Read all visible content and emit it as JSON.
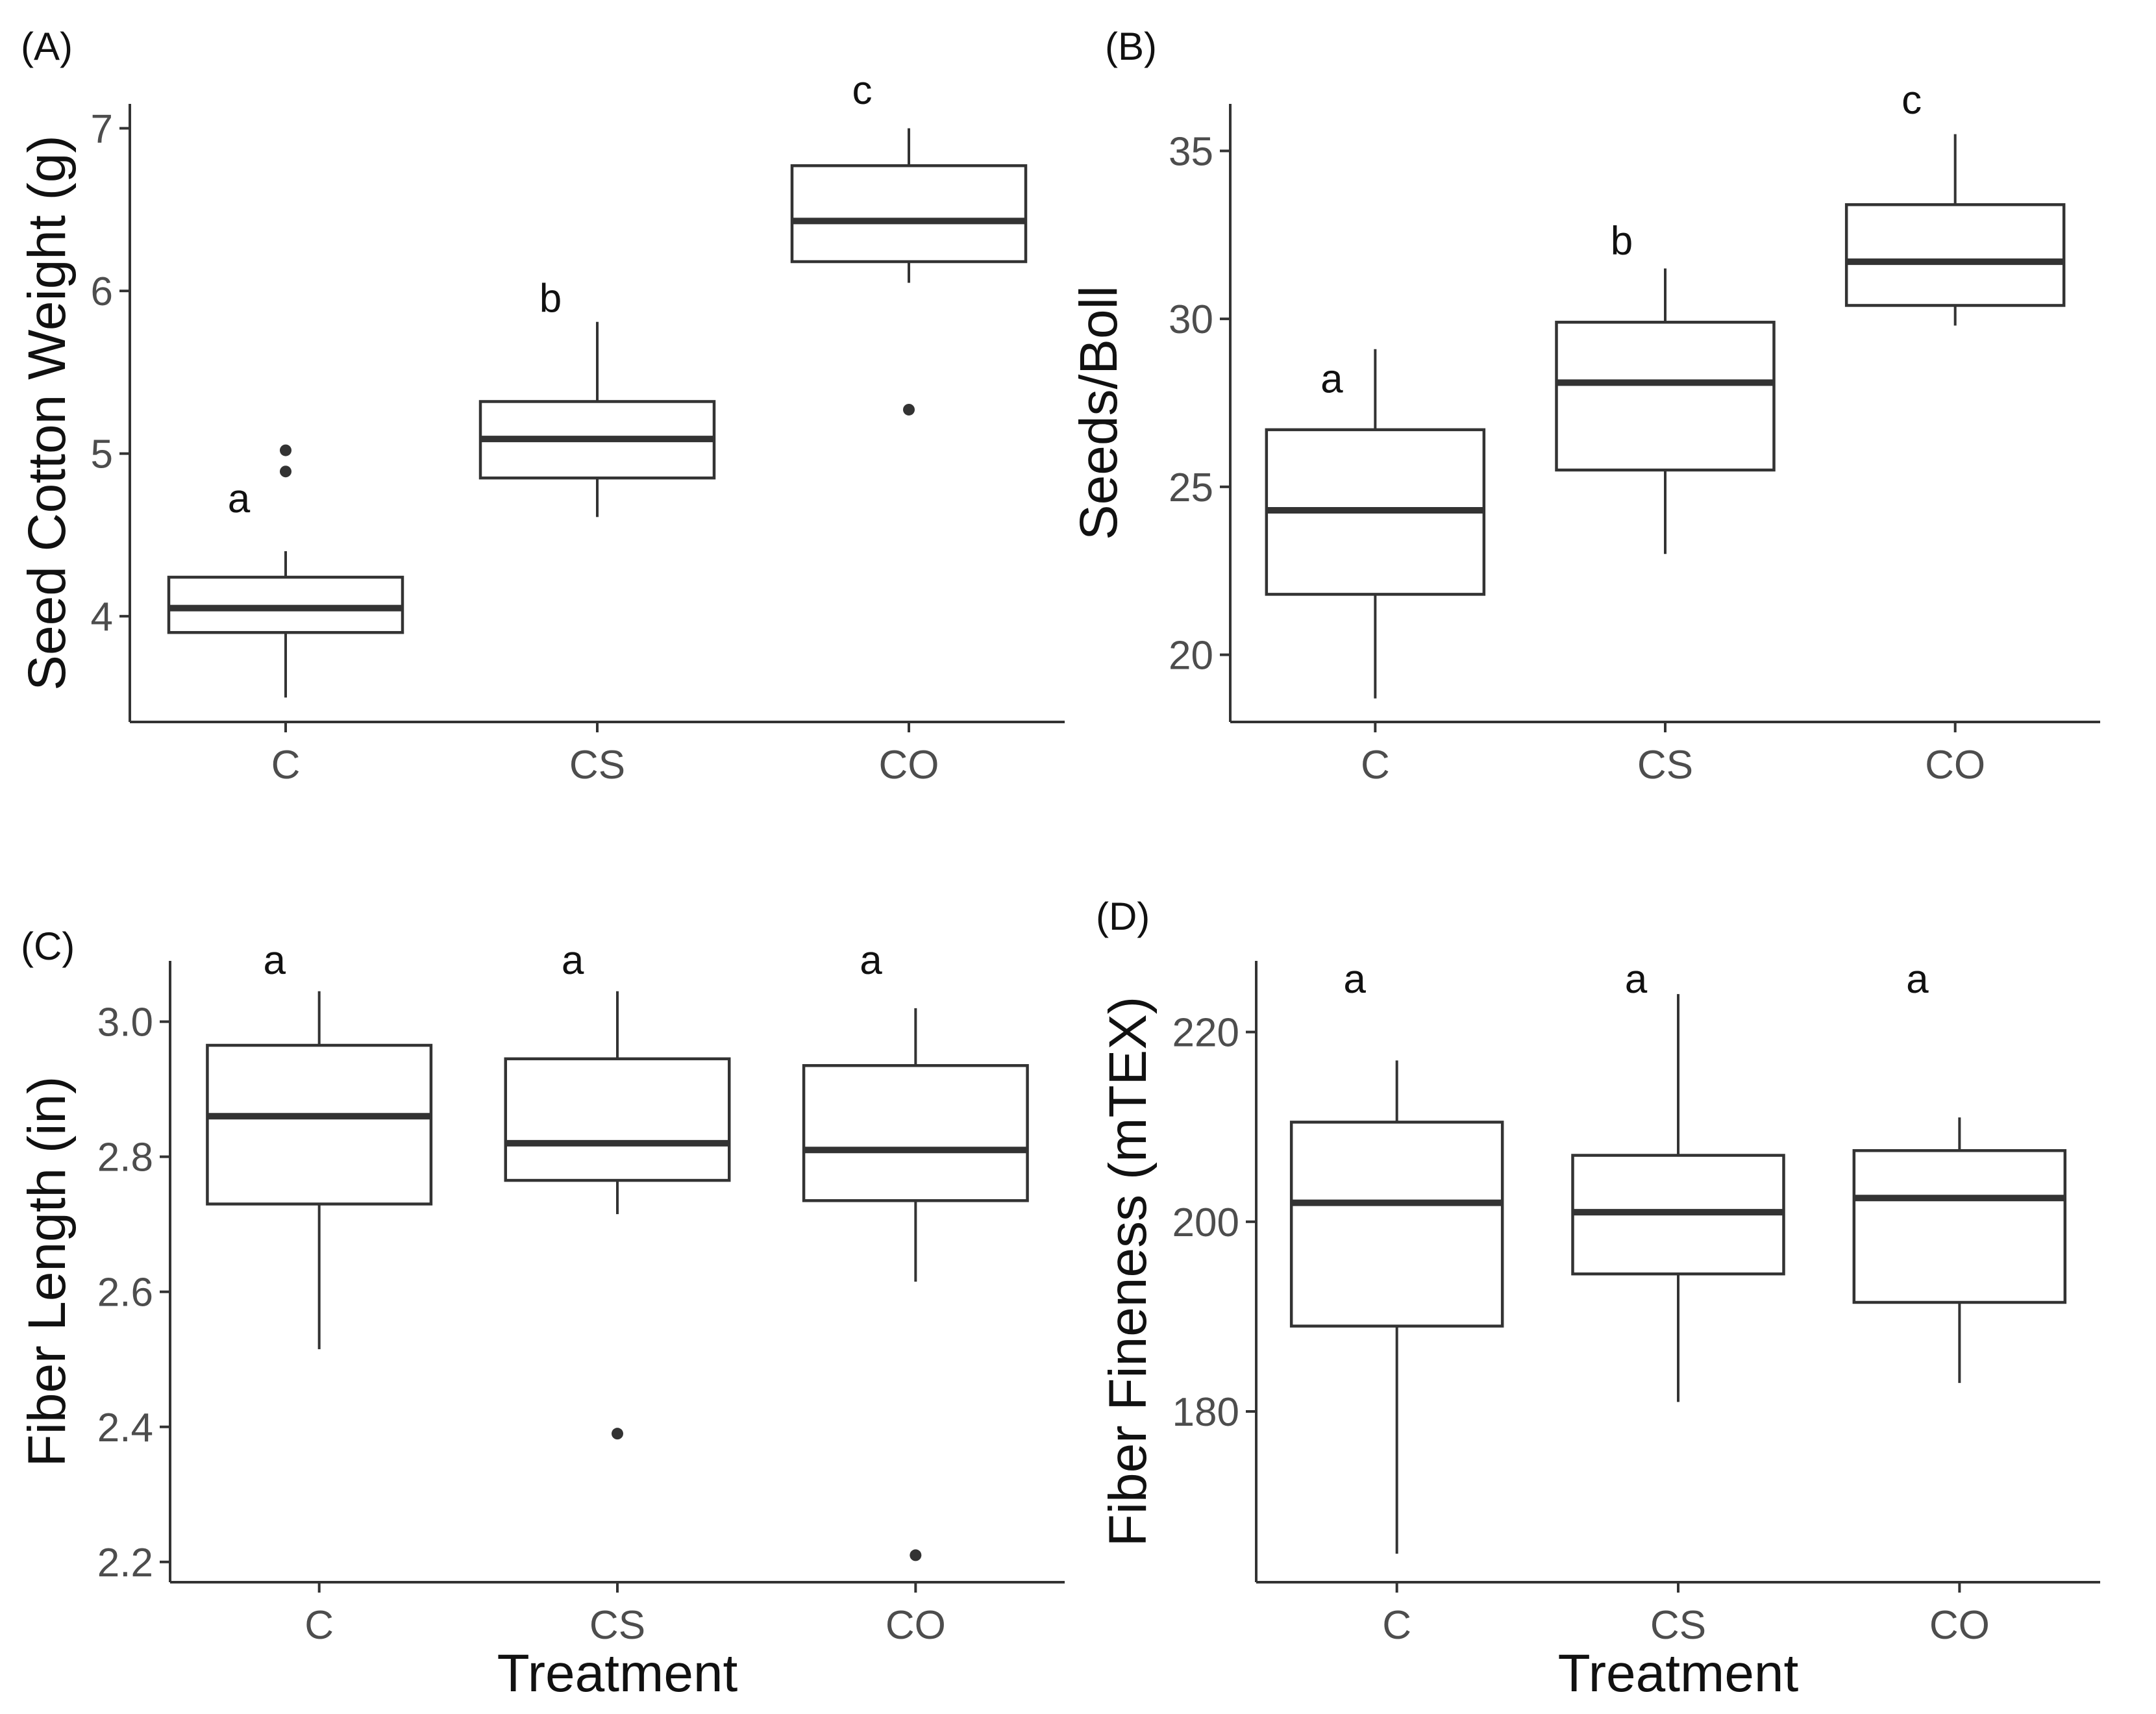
{
  "chart_data": [
    {
      "type": "boxplot",
      "panel": "(A)",
      "title": "",
      "xlabel": "",
      "ylabel": "Seed Cotton Weight (g)",
      "categories": [
        "C",
        "CS",
        "CO"
      ],
      "ylim": [
        3.35,
        7.15
      ],
      "yticks": [
        4,
        5,
        6,
        7
      ],
      "boxes": [
        {
          "category": "C",
          "min": 3.5,
          "q1": 3.9,
          "median": 4.05,
          "q3": 4.24,
          "max": 4.4,
          "outliers": [
            4.89,
            5.02
          ],
          "letter": "a",
          "letter_y": 4.72
        },
        {
          "category": "CS",
          "min": 4.61,
          "q1": 4.85,
          "median": 5.09,
          "q3": 5.32,
          "max": 5.81,
          "outliers": [],
          "letter": "b",
          "letter_y": 5.95
        },
        {
          "category": "CO",
          "min": 6.05,
          "q1": 6.18,
          "median": 6.43,
          "q3": 6.77,
          "max": 7.0,
          "outliers": [
            5.27
          ],
          "letter": "c",
          "letter_y": 7.23
        }
      ]
    },
    {
      "type": "boxplot",
      "panel": "(B)",
      "title": "",
      "xlabel": "",
      "ylabel": "Seeds/Boll",
      "categories": [
        "C",
        "CS",
        "CO"
      ],
      "ylim": [
        18.0,
        36.4
      ],
      "yticks": [
        20,
        25,
        30,
        35
      ],
      "boxes": [
        {
          "category": "C",
          "min": 18.7,
          "q1": 21.8,
          "median": 24.3,
          "q3": 26.7,
          "max": 29.1,
          "outliers": [],
          "letter": "a",
          "letter_y": 28.2
        },
        {
          "category": "CS",
          "min": 23.0,
          "q1": 25.5,
          "median": 28.1,
          "q3": 29.9,
          "max": 31.5,
          "outliers": [],
          "letter": "b",
          "letter_y": 32.3
        },
        {
          "category": "CO",
          "min": 29.8,
          "q1": 30.4,
          "median": 31.7,
          "q3": 33.4,
          "max": 35.5,
          "outliers": [],
          "letter": "c",
          "letter_y": 36.5
        }
      ]
    },
    {
      "type": "boxplot",
      "panel": "(C)",
      "title": "",
      "xlabel": "Treatment",
      "ylabel": "Fiber Length (in)",
      "categories": [
        "C",
        "CS",
        "CO"
      ],
      "ylim": [
        2.17,
        3.09
      ],
      "yticks": [
        2.2,
        2.4,
        2.6,
        2.8,
        3.0
      ],
      "ytick_labels": [
        "2.2",
        "2.4",
        "2.6",
        "2.8",
        "3.0"
      ],
      "boxes": [
        {
          "category": "C",
          "min": 2.515,
          "q1": 2.73,
          "median": 2.86,
          "q3": 2.965,
          "max": 3.045,
          "outliers": [],
          "letter": "a",
          "letter_y": 3.09
        },
        {
          "category": "CS",
          "min": 2.715,
          "q1": 2.765,
          "median": 2.82,
          "q3": 2.945,
          "max": 3.045,
          "outliers": [
            2.39
          ],
          "letter": "a",
          "letter_y": 3.09
        },
        {
          "category": "CO",
          "min": 2.615,
          "q1": 2.735,
          "median": 2.81,
          "q3": 2.935,
          "max": 3.02,
          "outliers": [
            2.21
          ],
          "letter": "a",
          "letter_y": 3.09
        }
      ]
    },
    {
      "type": "boxplot",
      "panel": "(D)",
      "title": "",
      "xlabel": "Treatment",
      "ylabel": "Fiber Fineness (mTEX)",
      "categories": [
        "C",
        "CS",
        "CO"
      ],
      "ylim": [
        162.0,
        227.5
      ],
      "yticks": [
        180,
        200,
        220
      ],
      "boxes": [
        {
          "category": "C",
          "min": 165.0,
          "q1": 189.0,
          "median": 202.0,
          "q3": 210.5,
          "max": 217.0,
          "outliers": [],
          "letter": "a",
          "letter_y": 225.5
        },
        {
          "category": "CS",
          "min": 181.0,
          "q1": 194.5,
          "median": 201.0,
          "q3": 207.0,
          "max": 224.0,
          "outliers": [],
          "letter": "a",
          "letter_y": 225.5
        },
        {
          "category": "CO",
          "min": 183.0,
          "q1": 191.5,
          "median": 202.5,
          "q3": 207.5,
          "max": 211.0,
          "outliers": [],
          "letter": "a",
          "letter_y": 225.5
        }
      ]
    }
  ]
}
